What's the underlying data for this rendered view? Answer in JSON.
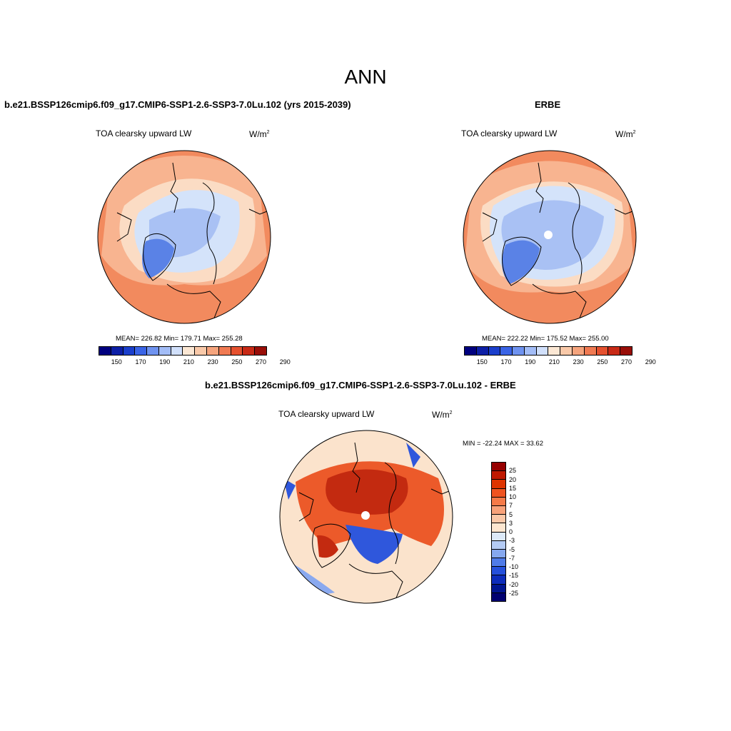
{
  "title": "ANN",
  "panels": {
    "model": {
      "title": "b.e21.BSSP126cmip6.f09_g17.CMIP6-SSP1-2.6-SSP3-7.0Lu.102 (yrs 2015-2039)",
      "variable": "TOA clearsky upward LW",
      "units_base": "W/m",
      "units_exp": "2",
      "stats": "MEAN= 226.82  Min= 179.71  Max= 255.28"
    },
    "obs": {
      "title": "ERBE",
      "variable": "TOA clearsky upward LW",
      "units_base": "W/m",
      "units_exp": "2",
      "stats": "MEAN= 222.22  Min= 175.52  Max= 255.00"
    },
    "diff": {
      "title": "b.e21.BSSP126cmip6.f09_g17.CMIP6-SSP1-2.6-SSP3-7.0Lu.102 - ERBE",
      "variable": "TOA clearsky upward LW",
      "units_base": "W/m",
      "units_exp": "2",
      "minmax": "MIN = -22.24 MAX =  33.62"
    }
  },
  "colorbars": {
    "abs_colors": [
      "#00007f",
      "#0d1fa6",
      "#1b3fcc",
      "#3a64e6",
      "#6f93f0",
      "#a3bdf7",
      "#d1e0fb",
      "#fbe7d4",
      "#f9c9a9",
      "#f5a47d",
      "#f07a52",
      "#e5512f",
      "#c82a16",
      "#990e08"
    ],
    "abs_ticks": [
      "150",
      "170",
      "190",
      "210",
      "230",
      "250",
      "270",
      "290"
    ],
    "diff_colors": [
      "#960000",
      "#c01800",
      "#de3400",
      "#ef5320",
      "#f57a48",
      "#f8a27a",
      "#fbc8a8",
      "#fde6d0",
      "#dce9f8",
      "#b4cbf4",
      "#86a8ef",
      "#4f7be8",
      "#2550db",
      "#0d2cbb",
      "#001590",
      "#000070"
    ],
    "diff_ticks": [
      "25",
      "20",
      "15",
      "10",
      "7",
      "5",
      "3",
      "0",
      "-3",
      "-5",
      "-7",
      "-10",
      "-15",
      "-20",
      "-25"
    ]
  },
  "map_colors": {
    "outer_warm": "#f28a5e",
    "mid_warm": "#f8b490",
    "light_warm": "#fbdcc4",
    "cool_light": "#d4e3fa",
    "cool_mid": "#a9c1f4",
    "cool_deep": "#5a82e6",
    "diff_base": "#fbe3cc",
    "diff_warm": "#ec5a2a",
    "diff_hot": "#c32a10",
    "diff_cool": "#8aa9ef",
    "diff_blue": "#2f57dc"
  }
}
